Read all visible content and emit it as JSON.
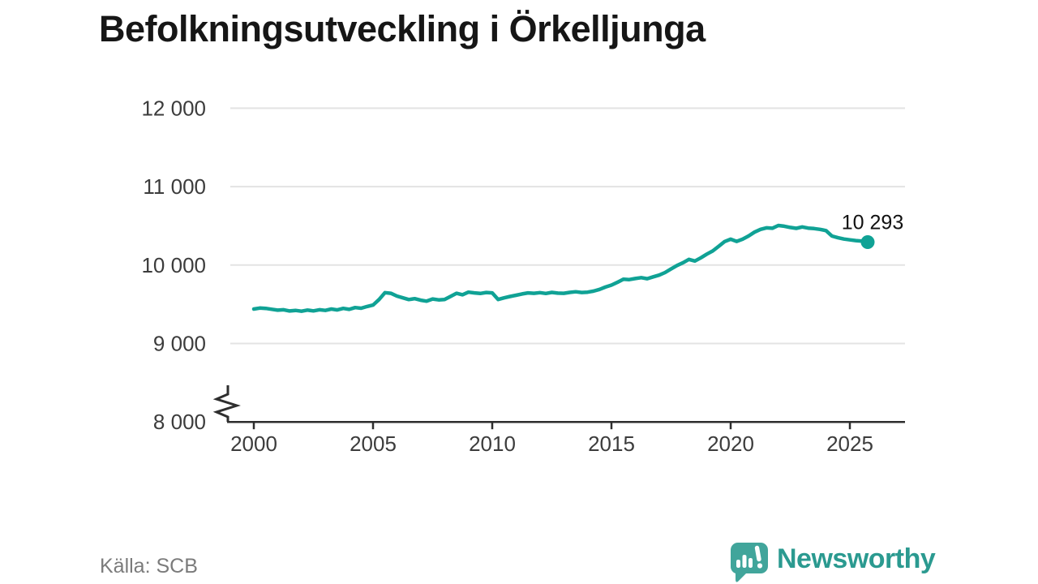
{
  "title": "Befolkningsutveckling i Örkelljunga",
  "source": "Källa: SCB",
  "branding": {
    "name": "Newsworthy"
  },
  "colors": {
    "line": "#10a295",
    "marker": "#10a295",
    "grid": "#e3e3e3",
    "axis": "#2e2e2e",
    "tick_text": "#3c3c3c",
    "title_text": "#161616",
    "source_text": "#7b7b7b",
    "label_text": "#111111",
    "logo_fill": "#41a59b",
    "logo_text": "#2b9a90"
  },
  "chart_data": {
    "type": "line",
    "title": "Befolkningsutveckling i Örkelljunga",
    "xlabel": "",
    "ylabel": "",
    "grid": "horizontal",
    "legend": "none",
    "axis_break": true,
    "baseline": 8000,
    "ylim": [
      8000,
      12000
    ],
    "yticks": [
      8000,
      9000,
      10000,
      11000,
      12000
    ],
    "ytick_labels": [
      "8 000",
      "9 000",
      "10 000",
      "11 000",
      "12 000"
    ],
    "xticks": [
      2000,
      2005,
      2010,
      2015,
      2020,
      2025
    ],
    "xtick_labels": [
      "2000",
      "2005",
      "2010",
      "2015",
      "2020",
      "2025"
    ],
    "last_value": 10293,
    "last_value_label": "10 293",
    "x": [
      2000.0,
      2000.25,
      2000.5,
      2000.75,
      2001.0,
      2001.25,
      2001.5,
      2001.75,
      2002.0,
      2002.25,
      2002.5,
      2002.75,
      2003.0,
      2003.25,
      2003.5,
      2003.75,
      2004.0,
      2004.25,
      2004.5,
      2004.75,
      2005.0,
      2005.25,
      2005.5,
      2005.75,
      2006.0,
      2006.25,
      2006.5,
      2006.75,
      2007.0,
      2007.25,
      2007.5,
      2007.75,
      2008.0,
      2008.25,
      2008.5,
      2008.75,
      2009.0,
      2009.25,
      2009.5,
      2009.75,
      2010.0,
      2010.25,
      2010.5,
      2010.75,
      2011.0,
      2011.25,
      2011.5,
      2011.75,
      2012.0,
      2012.25,
      2012.5,
      2012.75,
      2013.0,
      2013.25,
      2013.5,
      2013.75,
      2014.0,
      2014.25,
      2014.5,
      2014.75,
      2015.0,
      2015.25,
      2015.5,
      2015.75,
      2016.0,
      2016.25,
      2016.5,
      2016.75,
      2017.0,
      2017.25,
      2017.5,
      2017.75,
      2018.0,
      2018.25,
      2018.5,
      2018.75,
      2019.0,
      2019.25,
      2019.5,
      2019.75,
      2020.0,
      2020.25,
      2020.5,
      2020.75,
      2021.0,
      2021.25,
      2021.5,
      2021.75,
      2022.0,
      2022.25,
      2022.5,
      2022.75,
      2023.0,
      2023.25,
      2023.5,
      2023.75,
      2024.0,
      2024.25,
      2024.5,
      2024.75,
      2025.0,
      2025.25,
      2025.5,
      2025.75
    ],
    "values": [
      9440,
      9452,
      9448,
      9436,
      9425,
      9430,
      9415,
      9422,
      9412,
      9426,
      9416,
      9430,
      9422,
      9440,
      9428,
      9448,
      9435,
      9458,
      9450,
      9472,
      9490,
      9560,
      9648,
      9640,
      9605,
      9582,
      9560,
      9572,
      9552,
      9540,
      9568,
      9556,
      9560,
      9600,
      9640,
      9622,
      9655,
      9645,
      9638,
      9650,
      9645,
      9562,
      9582,
      9600,
      9615,
      9632,
      9645,
      9640,
      9648,
      9638,
      9652,
      9642,
      9640,
      9652,
      9660,
      9650,
      9655,
      9668,
      9690,
      9720,
      9745,
      9780,
      9820,
      9815,
      9828,
      9840,
      9826,
      9850,
      9872,
      9905,
      9950,
      9995,
      10030,
      10072,
      10052,
      10093,
      10140,
      10180,
      10240,
      10300,
      10330,
      10302,
      10330,
      10370,
      10420,
      10455,
      10475,
      10470,
      10505,
      10495,
      10480,
      10468,
      10486,
      10472,
      10465,
      10455,
      10440,
      10370,
      10348,
      10332,
      10322,
      10312,
      10305,
      10293
    ]
  }
}
